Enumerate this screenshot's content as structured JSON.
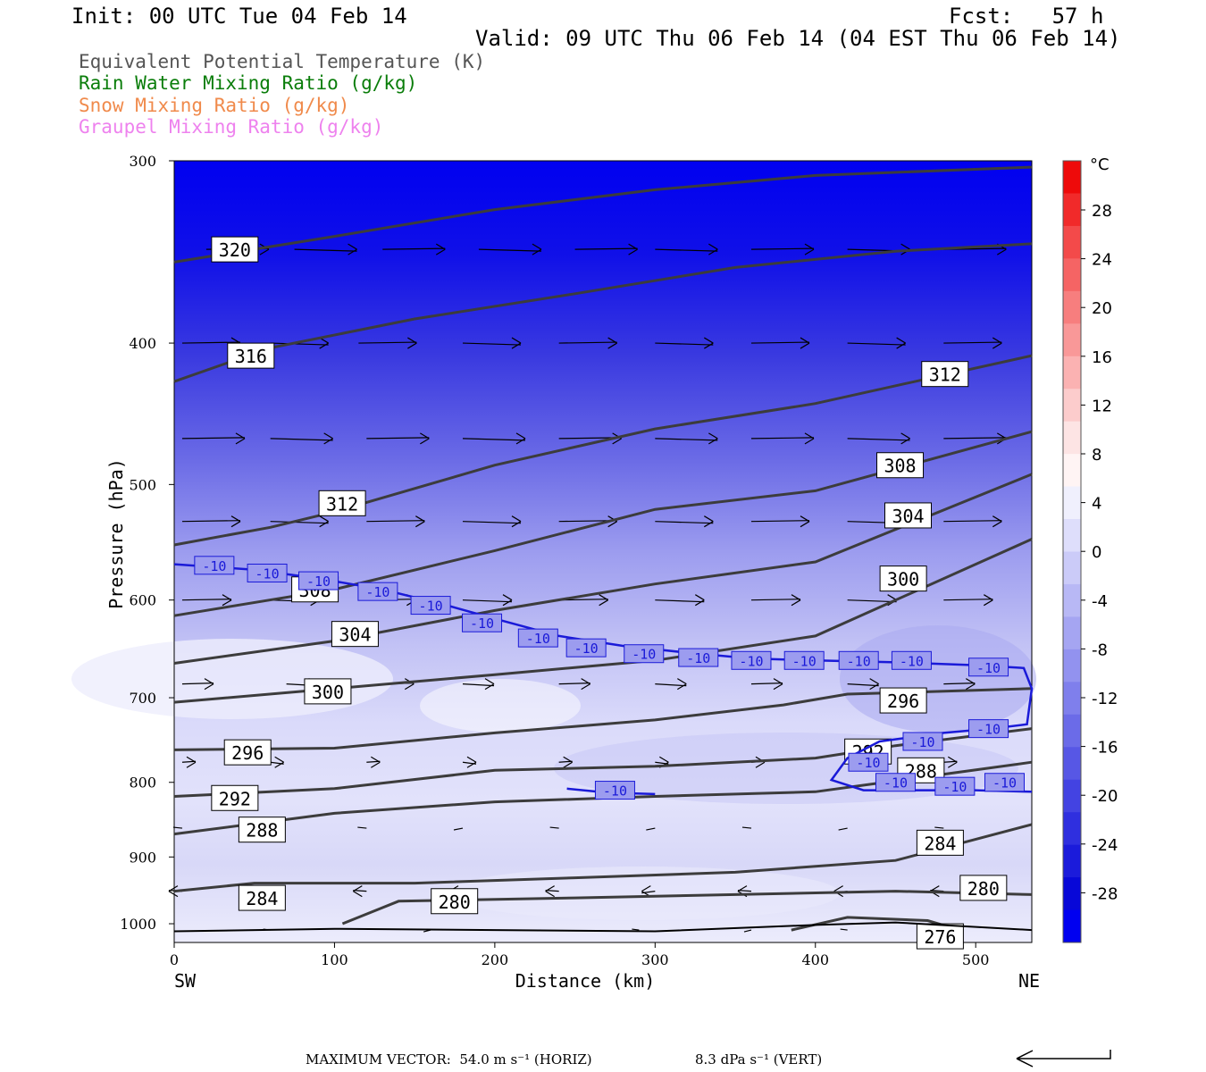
{
  "header": {
    "init": "Init: 00 UTC Tue 04 Feb 14",
    "fcst": "Fcst:   57 h",
    "valid": "Valid: 09 UTC Thu 06 Feb 14 (04 EST Thu 06 Feb 14)"
  },
  "legend": [
    {
      "label": "Equivalent Potential Temperature (K)",
      "color": "#555555"
    },
    {
      "label": "Rain Water Mixing Ratio (g/kg)",
      "color": "#0a7d0a"
    },
    {
      "label": "Snow Mixing Ratio (g/kg)",
      "color": "#f08a4b"
    },
    {
      "label": "Graupel Mixing Ratio (g/kg)",
      "color": "#ee82ee"
    }
  ],
  "footer": {
    "max_vector": "MAXIMUM VECTOR:  54.0 m s⁻¹ (HORIZ)",
    "vert": "8.3 dPa s⁻¹ (VERT)"
  },
  "chart_data": {
    "type": "cross-section contour",
    "xlabel": "Distance (km)",
    "ylabel": "Pressure (hPa)",
    "xlim": [
      0,
      535
    ],
    "ylim": [
      1030,
      300
    ],
    "y_scale": "log-pressure (inverted)",
    "x_ticks": [
      0,
      100,
      200,
      300,
      400,
      500
    ],
    "y_ticks": [
      300,
      400,
      500,
      600,
      700,
      800,
      900,
      1000
    ],
    "x_end_labels": {
      "left": "SW",
      "right": "NE"
    },
    "colorbar": {
      "unit": "°C",
      "tick_labels": [
        "28",
        "24",
        "20",
        "16",
        "12",
        "8",
        "4",
        "0",
        "-4",
        "-8",
        "-12",
        "-16",
        "-20",
        "-24",
        "-28"
      ],
      "colors": [
        "#ee0a0a",
        "#f12a2a",
        "#f34a4a",
        "#f56464",
        "#f77e7e",
        "#f99898",
        "#fbb2b2",
        "#fccccc",
        "#fde4e4",
        "#fff4f4",
        "#f0f0fd",
        "#dedefb",
        "#cbcbf8",
        "#b8b8f5",
        "#a5a5f2",
        "#9292ef",
        "#7f7fec",
        "#6b6be8",
        "#5757e5",
        "#4343e2",
        "#2f2fdf",
        "#1b1bdb",
        "#0808d8",
        "#0000f0"
      ]
    },
    "theta_e_contours": [
      {
        "value": 320,
        "points": [
          [
            0,
            352
          ],
          [
            100,
            338
          ],
          [
            200,
            324
          ],
          [
            300,
            314
          ],
          [
            400,
            307
          ],
          [
            535,
            303
          ]
        ],
        "label_at": [
          25,
          345
        ]
      },
      {
        "value": 316,
        "points": [
          [
            0,
            425
          ],
          [
            60,
            403
          ],
          [
            150,
            385
          ],
          [
            250,
            370
          ],
          [
            350,
            355
          ],
          [
            450,
            346
          ],
          [
            535,
            342
          ]
        ],
        "label_at": [
          35,
          408
        ]
      },
      {
        "value": 312,
        "points": [
          [
            0,
            550
          ],
          [
            60,
            535
          ],
          [
            100,
            522
          ],
          [
            200,
            485
          ],
          [
            300,
            458
          ],
          [
            400,
            440
          ],
          [
            535,
            408
          ]
        ],
        "label_at": [
          92,
          515
        ],
        "label_at2": [
          468,
          420
        ]
      },
      {
        "value": 308,
        "points": [
          [
            0,
            615
          ],
          [
            100,
            590
          ],
          [
            200,
            555
          ],
          [
            300,
            520
          ],
          [
            400,
            505
          ],
          [
            535,
            460
          ]
        ],
        "label_at": [
          75,
          590
        ],
        "label_at2": [
          440,
          485
        ]
      },
      {
        "value": 304,
        "points": [
          [
            0,
            663
          ],
          [
            100,
            640
          ],
          [
            200,
            610
          ],
          [
            300,
            585
          ],
          [
            400,
            565
          ],
          [
            535,
            492
          ]
        ],
        "label_at": [
          100,
          633
        ],
        "label_at2": [
          445,
          525
        ]
      },
      {
        "value": 300,
        "points": [
          [
            0,
            705
          ],
          [
            100,
            690
          ],
          [
            200,
            675
          ],
          [
            300,
            660
          ],
          [
            400,
            635
          ],
          [
            535,
            545
          ]
        ],
        "label_at": [
          83,
          693
        ],
        "label_at2": [
          442,
          580
        ]
      },
      {
        "value": 296,
        "points": [
          [
            0,
            760
          ],
          [
            100,
            758
          ],
          [
            200,
            740
          ],
          [
            300,
            725
          ],
          [
            380,
            708
          ],
          [
            420,
            696
          ],
          [
            535,
            690
          ]
        ],
        "label_at": [
          33,
          763
        ],
        "label_at2": [
          442,
          703
        ]
      },
      {
        "value": 292,
        "points": [
          [
            0,
            818
          ],
          [
            100,
            808
          ],
          [
            200,
            785
          ],
          [
            300,
            780
          ],
          [
            400,
            770
          ],
          [
            450,
            755
          ],
          [
            535,
            735
          ]
        ],
        "label_at": [
          25,
          820
        ],
        "label_at2": [
          420,
          762
        ]
      },
      {
        "value": 288,
        "points": [
          [
            0,
            868
          ],
          [
            100,
            840
          ],
          [
            200,
            825
          ],
          [
            300,
            818
          ],
          [
            400,
            812
          ],
          [
            535,
            775
          ]
        ],
        "label_at": [
          42,
          862
        ],
        "label_at2": [
          453,
          785
        ]
      },
      {
        "value": 284,
        "points": [
          [
            0,
            950
          ],
          [
            50,
            938
          ],
          [
            150,
            938
          ],
          [
            250,
            930
          ],
          [
            350,
            922
          ],
          [
            450,
            905
          ],
          [
            535,
            855
          ]
        ],
        "label_at": [
          42,
          960
        ],
        "label_at2": [
          465,
          880
        ]
      },
      {
        "value": 280,
        "points": [
          [
            105,
            1000
          ],
          [
            140,
            965
          ],
          [
            250,
            960
          ],
          [
            350,
            955
          ],
          [
            450,
            950
          ],
          [
            535,
            955
          ]
        ],
        "label_at": [
          162,
          965
        ],
        "label_at2": [
          492,
          945
        ]
      },
      {
        "value": 276,
        "points": [
          [
            385,
            1010
          ],
          [
            420,
            990
          ],
          [
            470,
            995
          ],
          [
            490,
            1010
          ]
        ],
        "label_at": [
          465,
          1020
        ]
      }
    ],
    "isotherm_minus10": {
      "value": -10,
      "upper_points": [
        [
          0,
          567
        ],
        [
          50,
          572
        ],
        [
          90,
          580
        ],
        [
          130,
          590
        ],
        [
          170,
          605
        ],
        [
          200,
          618
        ],
        [
          240,
          635
        ],
        [
          280,
          645
        ],
        [
          320,
          652
        ],
        [
          360,
          658
        ],
        [
          400,
          660
        ],
        [
          450,
          662
        ],
        [
          500,
          665
        ],
        [
          530,
          668
        ],
        [
          535,
          690
        ],
        [
          532,
          730
        ],
        [
          510,
          735
        ],
        [
          480,
          740
        ],
        [
          440,
          750
        ],
        [
          420,
          770
        ],
        [
          410,
          797
        ],
        [
          430,
          810
        ],
        [
          470,
          810
        ],
        [
          500,
          810
        ],
        [
          535,
          812
        ]
      ],
      "lower_fragment": [
        [
          245,
          808
        ],
        [
          270,
          813
        ],
        [
          300,
          815
        ]
      ],
      "labels": [
        [
          25,
          568
        ],
        [
          58,
          575
        ],
        [
          90,
          582
        ],
        [
          127,
          592
        ],
        [
          160,
          605
        ],
        [
          192,
          622
        ],
        [
          227,
          637
        ],
        [
          257,
          647
        ],
        [
          293,
          653
        ],
        [
          327,
          657
        ],
        [
          360,
          660
        ],
        [
          393,
          660
        ],
        [
          427,
          660
        ],
        [
          460,
          660
        ],
        [
          508,
          667
        ],
        [
          508,
          735
        ],
        [
          467,
          750
        ],
        [
          433,
          775
        ],
        [
          450,
          800
        ],
        [
          487,
          805
        ],
        [
          518,
          800
        ],
        [
          275,
          810
        ]
      ]
    }
  }
}
